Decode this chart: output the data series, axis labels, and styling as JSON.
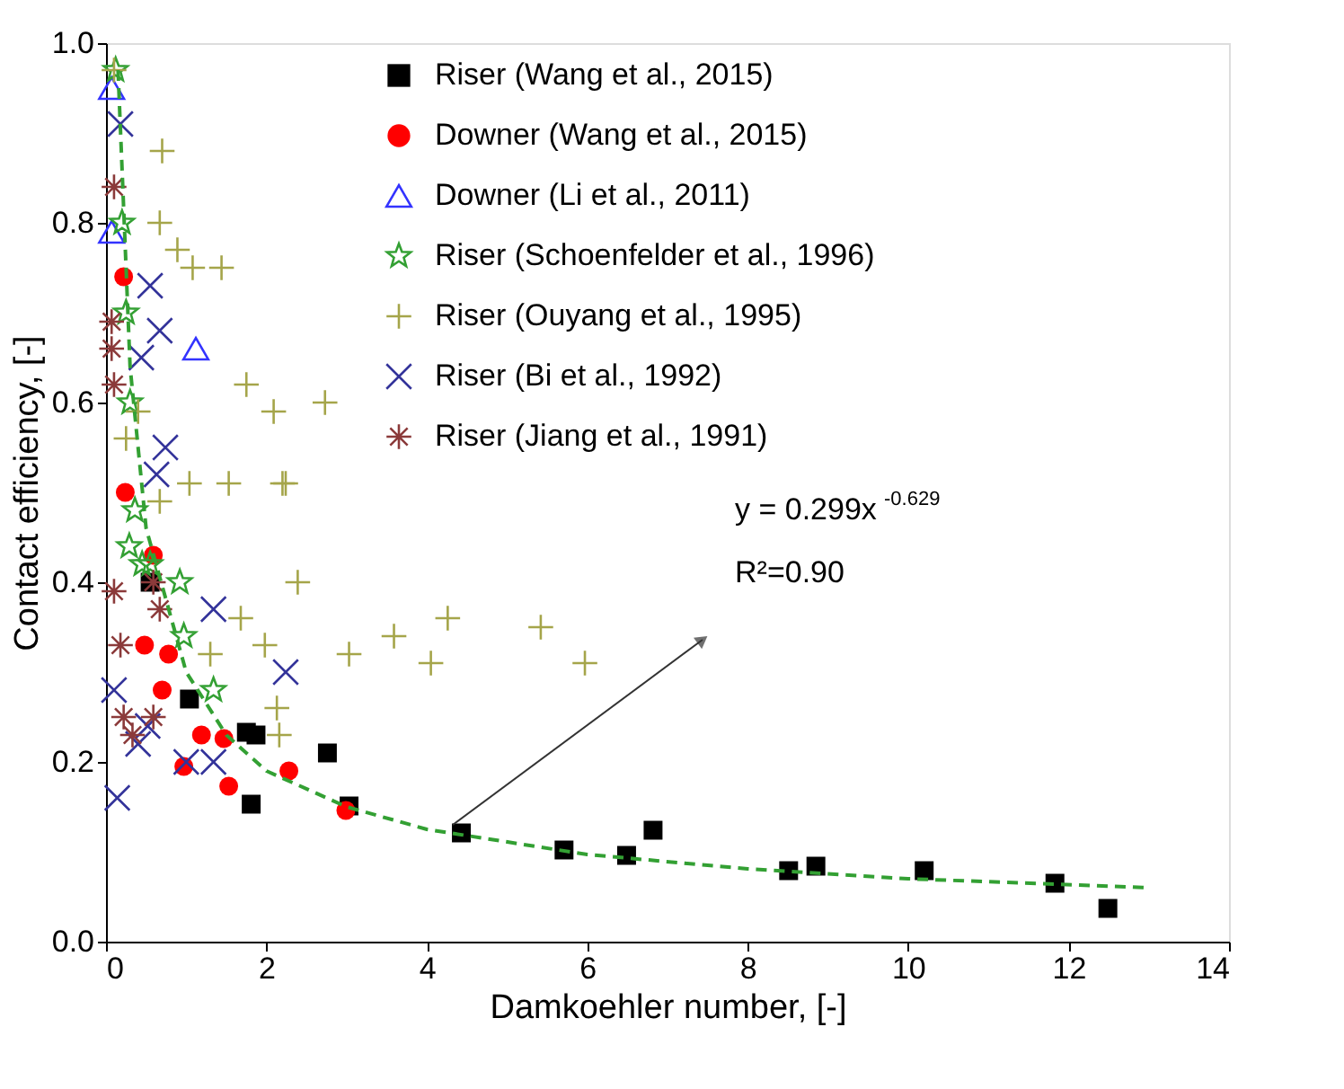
{
  "chart_data": {
    "type": "scatter",
    "xlabel": "Damkoehler number, [-]",
    "ylabel": "Contact efficiency, [-]",
    "xlim": [
      0,
      14
    ],
    "xticks": [
      0,
      2,
      4,
      6,
      8,
      10,
      12,
      14
    ],
    "ylim": [
      0,
      1
    ],
    "yticks": [
      {
        "value": 0,
        "label": "0.0"
      },
      {
        "value": 0.2,
        "label": "0.2"
      },
      {
        "value": 0.4,
        "label": "0.4"
      },
      {
        "value": 0.6,
        "label": "0.6"
      },
      {
        "value": 0.8,
        "label": "0.8"
      },
      {
        "value": 1,
        "label": "1.0"
      }
    ],
    "grid": false,
    "legend": "top right",
    "annotations": [
      "y = 0.299x$^{-0.629}$",
      "R²=0.90"
    ],
    "series": [
      {
        "name": "Riser      (Wang et al., 2015)",
        "color": "#000000",
        "marker": "square",
        "x": [
          0.55,
          1.04,
          1.75,
          1.87,
          1.81,
          2.76,
          3.03,
          4.43,
          5.71,
          6.49,
          6.82,
          8.51,
          8.85,
          10.2,
          11.83,
          12.49
        ],
        "values": [
          0.4,
          0.27,
          0.233,
          0.23,
          0.153,
          0.21,
          0.151,
          0.121,
          0.102,
          0.096,
          0.124,
          0.079,
          0.084,
          0.079,
          0.065,
          0.037
        ]
      },
      {
        "name": "Downer (Wang et al., 2015)",
        "color": "#ff0000",
        "marker": "circle",
        "x": [
          0.22,
          0.24,
          0.48,
          0.78,
          0.7,
          0.59,
          1.19,
          1.47,
          0.97,
          1.53,
          2.28,
          2.99
        ],
        "values": [
          0.74,
          0.5,
          0.33,
          0.32,
          0.28,
          0.43,
          0.23,
          0.226,
          0.195,
          0.173,
          0.19,
          0.146
        ]
      },
      {
        "name": "Downer (Li et al., 2011)",
        "color": "#3333ff",
        "marker": "triangle",
        "x": [
          0.07,
          0.07,
          1.12
        ],
        "values": [
          0.95,
          0.79,
          0.66
        ]
      },
      {
        "name": "Riser (Schoenfelder et al., 1996)",
        "color": "#33a033",
        "marker": "star",
        "x": [
          0.12,
          0.2,
          0.25,
          0.3,
          0.36,
          0.29,
          0.45,
          0.55,
          0.92,
          0.97,
          1.34
        ],
        "values": [
          0.97,
          0.8,
          0.7,
          0.6,
          0.48,
          0.44,
          0.42,
          0.42,
          0.4,
          0.34,
          0.28
        ]
      },
      {
        "name": "Riser (Ouyang et al., 1995)",
        "color": "#a5a54a",
        "marker": "cross",
        "x": [
          0.1,
          0.7,
          0.67,
          0.89,
          1.08,
          1.44,
          1.75,
          2.09,
          2.73,
          2.2,
          2.39,
          3.03,
          3.59,
          4.05,
          4.26,
          5.42,
          5.97,
          1.04,
          1.53,
          2.24,
          0.4,
          0.25,
          0.67,
          1.68,
          1.3,
          1.98,
          2.13,
          2.16
        ],
        "values": [
          0.97,
          0.88,
          0.8,
          0.77,
          0.75,
          0.75,
          0.62,
          0.59,
          0.6,
          0.51,
          0.4,
          0.32,
          0.34,
          0.31,
          0.36,
          0.35,
          0.31,
          0.51,
          0.51,
          0.51,
          0.59,
          0.56,
          0.49,
          0.36,
          0.32,
          0.33,
          0.26,
          0.23
        ]
      },
      {
        "name": "Riser (Bi et al., 1992)",
        "color": "#33339a",
        "x": [
          0.18,
          0.55,
          0.67,
          0.44,
          0.74,
          0.63,
          1.34,
          2.24,
          0.1,
          0.52,
          0.4,
          1.0,
          1.34,
          0.14
        ],
        "values": [
          0.91,
          0.73,
          0.68,
          0.65,
          0.55,
          0.52,
          0.37,
          0.3,
          0.28,
          0.24,
          0.22,
          0.2,
          0.2,
          0.16
        ]
      },
      {
        "name": "Riser (Jiang et al., 1991)",
        "color": "#8b3a3a",
        "x": [
          0.1,
          0.07,
          0.07,
          0.1,
          0.1,
          0.59,
          0.67,
          0.18,
          0.22,
          0.59,
          0.33
        ],
        "values": [
          0.84,
          0.69,
          0.66,
          0.62,
          0.39,
          0.4,
          0.37,
          0.33,
          0.25,
          0.25,
          0.23
        ]
      },
      {
        "type": "line",
        "color": "#33a033",
        "line_style": "dashed",
        "x": [
          0.15,
          0.3,
          0.5,
          1,
          1.5,
          2,
          3,
          4,
          6,
          8,
          10,
          13
        ],
        "values": [
          0.97,
          0.64,
          0.46,
          0.3,
          0.23,
          0.19,
          0.15,
          0.125,
          0.097,
          0.081,
          0.07,
          0.06
        ]
      }
    ]
  }
}
